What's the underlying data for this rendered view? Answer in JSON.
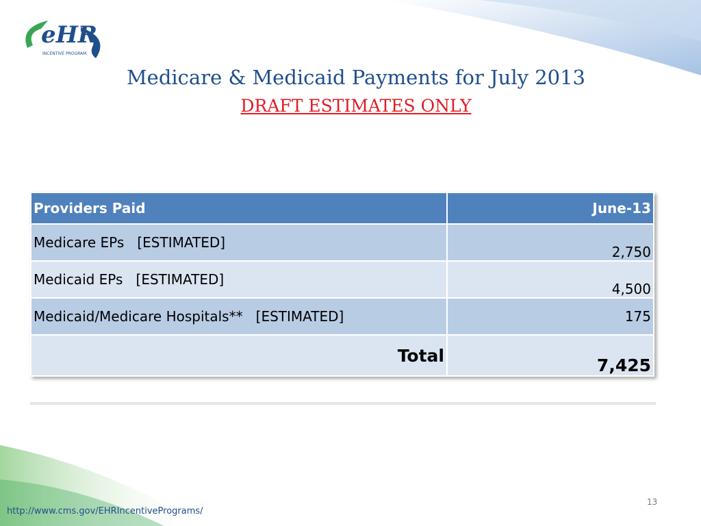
{
  "logo": {
    "mark": "eHR",
    "tagline": "INCENTIVE PROGRAM"
  },
  "header": {
    "title": "Medicare & Medicaid Payments for July 2013",
    "subtitle": "DRAFT ESTIMATES ONLY"
  },
  "table": {
    "columns": [
      "Providers Paid",
      "June-13"
    ],
    "rows": [
      [
        "Medicare EPs   [ESTIMATED]",
        "2,750"
      ],
      [
        "Medicaid EPs   [ESTIMATED]",
        "4,500"
      ],
      [
        "Medicaid/Medicare Hospitals**   [ESTIMATED]",
        "175"
      ]
    ],
    "total": [
      "Total",
      "7,425"
    ]
  },
  "footer": {
    "url": "http://www.cms.gov/EHRIncentivePrograms/",
    "page": "13"
  }
}
